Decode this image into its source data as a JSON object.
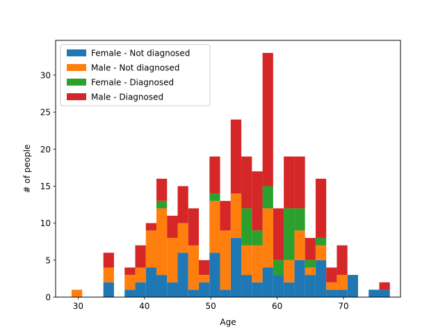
{
  "chart_data": {
    "type": "bar",
    "stacked": true,
    "title": "",
    "xlabel": "Age",
    "ylabel": "# of people",
    "xlim": [
      26.6,
      78.6
    ],
    "ylim": [
      0,
      34.7
    ],
    "xticks": [
      30,
      40,
      50,
      60,
      70
    ],
    "yticks": [
      0,
      5,
      10,
      15,
      20,
      25,
      30
    ],
    "grid": false,
    "legend_position": "top-left",
    "bin_width": 1.6,
    "bin_starts": [
      29,
      30.6,
      32.2,
      33.8,
      35.4,
      37,
      38.6,
      40.2,
      41.8,
      43.4,
      45,
      46.6,
      48.2,
      49.8,
      51.4,
      53,
      54.6,
      56.2,
      57.8,
      59.4,
      61,
      62.6,
      64.2,
      65.8,
      67.4,
      69,
      70.6,
      72.2,
      73.8,
      75.4
    ],
    "series": [
      {
        "name": "Female - Not diagnosed",
        "color": "#1f77b4",
        "values": [
          0,
          0,
          0,
          2,
          0,
          1,
          2,
          4,
          3,
          2,
          6,
          1,
          2,
          6,
          1,
          8,
          3,
          2,
          4,
          3,
          2,
          5,
          3,
          5,
          1,
          1,
          3,
          0,
          1,
          1
        ]
      },
      {
        "name": "Male - Not diagnosed",
        "color": "#ff7f0e",
        "values": [
          1,
          0,
          0,
          2,
          0,
          2,
          2,
          5,
          9,
          6,
          4,
          6,
          1,
          7,
          8,
          6,
          4,
          5,
          8,
          0,
          3,
          4,
          1,
          2,
          1,
          2,
          0,
          0,
          0,
          0
        ]
      },
      {
        "name": "Female - Diagnosed",
        "color": "#2ca02c",
        "values": [
          0,
          0,
          0,
          0,
          0,
          0,
          0,
          0,
          1,
          0,
          0,
          0,
          0,
          1,
          0,
          0,
          5,
          2,
          3,
          2,
          7,
          3,
          1,
          1,
          0,
          0,
          0,
          0,
          0,
          0
        ]
      },
      {
        "name": "Male - Diagnosed",
        "color": "#d62728",
        "values": [
          0,
          0,
          0,
          2,
          0,
          1,
          3,
          1,
          3,
          3,
          5,
          5,
          2,
          5,
          4,
          10,
          7,
          8,
          18,
          7,
          7,
          7,
          3,
          8,
          2,
          4,
          0,
          0,
          0,
          1
        ]
      }
    ]
  }
}
